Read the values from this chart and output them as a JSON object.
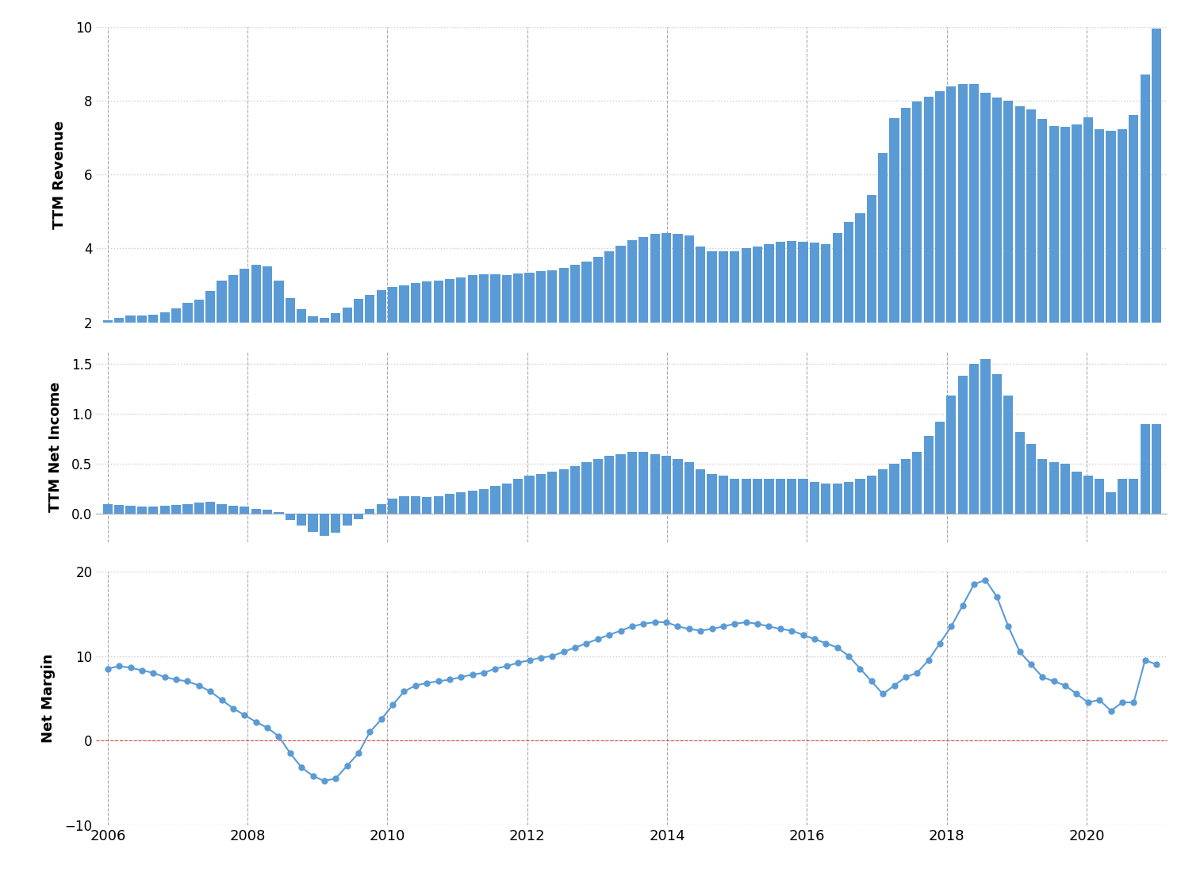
{
  "revenue": [
    2.06,
    2.13,
    2.18,
    2.19,
    2.21,
    2.26,
    2.38,
    2.52,
    2.62,
    2.85,
    3.12,
    3.28,
    3.44,
    3.56,
    3.51,
    3.12,
    2.66,
    2.35,
    2.17,
    2.12,
    2.25,
    2.4,
    2.63,
    2.75,
    2.87,
    2.96,
    3.0,
    3.07,
    3.1,
    3.12,
    3.18,
    3.22,
    3.27,
    3.3,
    3.3,
    3.27,
    3.32,
    3.35,
    3.38,
    3.41,
    3.48,
    3.55,
    3.65,
    3.78,
    3.93,
    4.08,
    4.22,
    4.3,
    4.4,
    4.42,
    4.4,
    4.35,
    4.05,
    3.92,
    3.92,
    3.93,
    4.0,
    4.05,
    4.12,
    4.18,
    4.2,
    4.18,
    4.15,
    4.12,
    4.42,
    4.72,
    4.95,
    5.45,
    6.58,
    7.52,
    7.8,
    7.98,
    8.1,
    8.25,
    8.38,
    8.45,
    8.45,
    8.2,
    8.08,
    8.0,
    7.85,
    7.75,
    7.5,
    7.3,
    7.28,
    7.35,
    7.55,
    7.22,
    7.18,
    7.22,
    7.6,
    8.7,
    9.95
  ],
  "net_income": [
    0.1,
    0.09,
    0.08,
    0.07,
    0.07,
    0.08,
    0.09,
    0.1,
    0.11,
    0.12,
    0.1,
    0.08,
    0.07,
    0.05,
    0.04,
    0.02,
    -0.06,
    -0.12,
    -0.18,
    -0.22,
    -0.19,
    -0.12,
    -0.05,
    0.05,
    0.1,
    0.15,
    0.18,
    0.18,
    0.17,
    0.18,
    0.2,
    0.22,
    0.23,
    0.25,
    0.28,
    0.3,
    0.35,
    0.38,
    0.4,
    0.42,
    0.45,
    0.48,
    0.52,
    0.55,
    0.58,
    0.6,
    0.62,
    0.62,
    0.6,
    0.58,
    0.55,
    0.52,
    0.45,
    0.4,
    0.38,
    0.35,
    0.35,
    0.35,
    0.35,
    0.35,
    0.35,
    0.35,
    0.32,
    0.3,
    0.3,
    0.32,
    0.35,
    0.38,
    0.45,
    0.5,
    0.55,
    0.62,
    0.78,
    0.92,
    1.18,
    1.38,
    1.5,
    1.55,
    1.4,
    1.18,
    0.82,
    0.7,
    0.55,
    0.52,
    0.5,
    0.42,
    0.38,
    0.35,
    0.22,
    0.35,
    0.35,
    0.9,
    0.9
  ],
  "net_margin": [
    8.5,
    8.8,
    8.6,
    8.3,
    8.0,
    7.5,
    7.2,
    7.0,
    6.5,
    5.8,
    4.8,
    3.8,
    3.0,
    2.2,
    1.5,
    0.5,
    -1.5,
    -3.2,
    -4.2,
    -4.8,
    -4.5,
    -3.0,
    -1.5,
    1.0,
    2.5,
    4.2,
    5.8,
    6.5,
    6.8,
    7.0,
    7.2,
    7.5,
    7.8,
    8.0,
    8.5,
    8.8,
    9.2,
    9.5,
    9.8,
    10.0,
    10.5,
    11.0,
    11.5,
    12.0,
    12.5,
    13.0,
    13.5,
    13.8,
    14.0,
    14.0,
    13.5,
    13.2,
    13.0,
    13.2,
    13.5,
    13.8,
    14.0,
    13.8,
    13.5,
    13.2,
    13.0,
    12.5,
    12.0,
    11.5,
    11.0,
    10.0,
    8.5,
    7.0,
    5.5,
    6.5,
    7.5,
    8.0,
    9.5,
    11.5,
    13.5,
    16.0,
    18.5,
    19.0,
    17.0,
    13.5,
    10.5,
    9.0,
    7.5,
    7.0,
    6.5,
    5.5,
    4.5,
    4.8,
    3.5,
    4.5,
    4.5,
    9.5,
    9.0
  ],
  "bar_color": "#5b9bd5",
  "line_color": "#5b9bd5",
  "background_color": "#ffffff",
  "grid_color_y": "#cccccc",
  "grid_color_x": "#aaaaaa",
  "ylabel1": "TTM Revenue",
  "ylabel2": "TTM Net Income",
  "ylabel3": "Net Margin",
  "ylim1": [
    2,
    10
  ],
  "ylim2_inner": [
    0.0,
    1.5
  ],
  "ylim2_full": [
    -0.5,
    1.5
  ],
  "ylim3": [
    -10,
    20
  ],
  "yticks1": [
    2,
    4,
    6,
    8,
    10
  ],
  "yticks2": [
    0.0,
    0.5,
    1.0,
    1.5
  ],
  "yticks3": [
    -10,
    0,
    10,
    20
  ],
  "n_bars": 93,
  "start_year": 2006,
  "end_year": 2021,
  "x_years": [
    2006,
    2008,
    2010,
    2012,
    2014,
    2016,
    2018,
    2020
  ]
}
